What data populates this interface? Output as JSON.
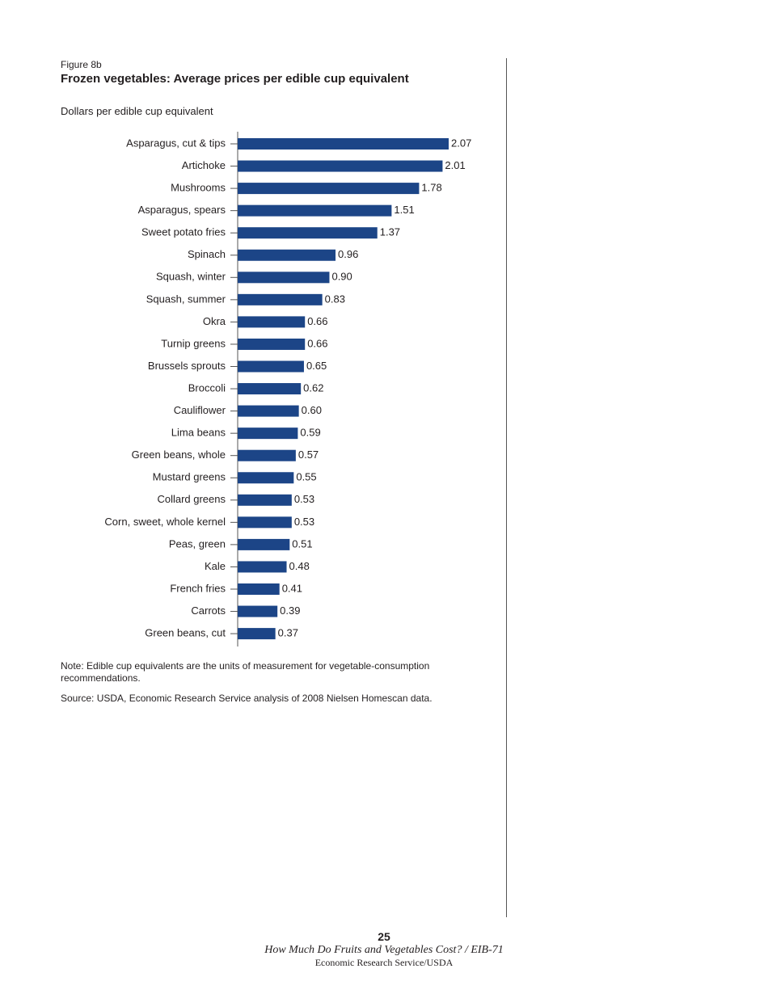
{
  "figure_label": "Figure 8b",
  "chart_data": {
    "type": "bar",
    "orientation": "horizontal",
    "title": "Frozen vegetables: Average prices per edible cup equivalent",
    "subtitle": "Dollars per edible cup equivalent",
    "categories": [
      "Asparagus, cut & tips",
      "Artichoke",
      "Mushrooms",
      "Asparagus, spears",
      "Sweet potato fries",
      "Spinach",
      "Squash, winter",
      "Squash, summer",
      "Okra",
      "Turnip greens",
      "Brussels sprouts",
      "Broccoli",
      "Cauliflower",
      "Lima beans",
      "Green beans, whole",
      "Mustard greens",
      "Collard greens",
      "Corn, sweet, whole kernel",
      "Peas, green",
      "Kale",
      "French fries",
      "Carrots",
      "Green beans, cut"
    ],
    "values": [
      2.07,
      2.01,
      1.78,
      1.51,
      1.37,
      0.96,
      0.9,
      0.83,
      0.66,
      0.66,
      0.65,
      0.62,
      0.6,
      0.59,
      0.57,
      0.55,
      0.53,
      0.53,
      0.51,
      0.48,
      0.41,
      0.39,
      0.37
    ],
    "value_labels": [
      "2.07",
      "2.01",
      "1.78",
      "1.51",
      "1.37",
      "0.96",
      "0.90",
      "0.83",
      "0.66",
      "0.66",
      "0.65",
      "0.62",
      "0.60",
      "0.59",
      "0.57",
      "0.55",
      "0.53",
      "0.53",
      "0.51",
      "0.48",
      "0.41",
      "0.39",
      "0.37"
    ],
    "color": "#1c4587"
  },
  "note": "Note: Edible cup equivalents are the units of measurement for vegetable-consumption recommendations.",
  "source": "Source: USDA, Economic Research Service analysis of 2008 Nielsen Homescan data.",
  "footer": {
    "page_number": "25",
    "publication": "How Much Do Fruits and Vegetables Cost? / EIB-71",
    "agency": "Economic Research Service/USDA"
  }
}
